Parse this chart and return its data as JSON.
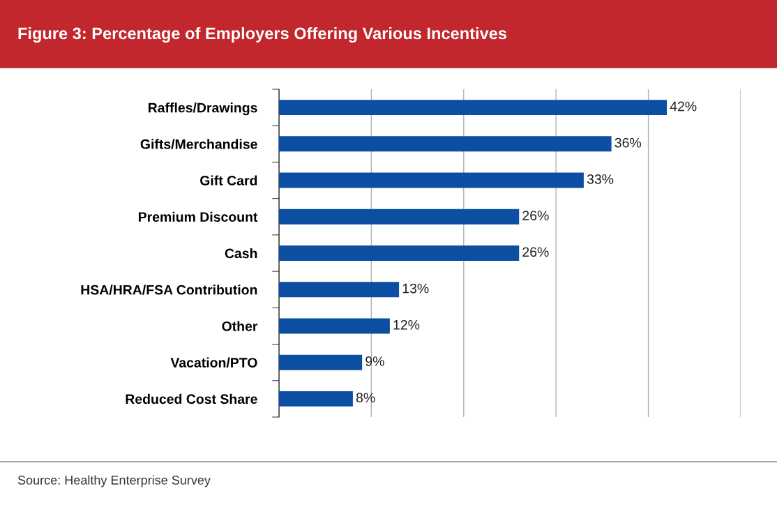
{
  "chart_data": {
    "type": "bar",
    "orientation": "horizontal",
    "title": "Figure 3: Percentage of Employers Offering Various Incentives",
    "categories": [
      "Raffles/Drawings",
      "Gifts/Merchandise",
      "Gift Card",
      "Premium Discount",
      "Cash",
      "HSA/HRA/FSA Contribution",
      "Other",
      "Vacation/PTO",
      "Reduced Cost Share"
    ],
    "values": [
      42,
      36,
      33,
      26,
      26,
      13,
      12,
      9,
      8
    ],
    "value_labels": [
      "42%",
      "36%",
      "33%",
      "26%",
      "26%",
      "13%",
      "12%",
      "9%",
      "8%"
    ],
    "color": "#0b4ea2",
    "xlim": [
      0,
      50
    ],
    "xticks": [
      {
        "value": 0,
        "label": null
      },
      {
        "value": 10,
        "label": null
      },
      {
        "value": 20,
        "label": null
      },
      {
        "value": 30,
        "label": null
      },
      {
        "value": 40,
        "label": null
      },
      {
        "value": 50,
        "label": null
      }
    ],
    "tick_labels": "y",
    "grid": "x",
    "annotations": [
      "Source: Healthy Enterprise Survey"
    ]
  }
}
